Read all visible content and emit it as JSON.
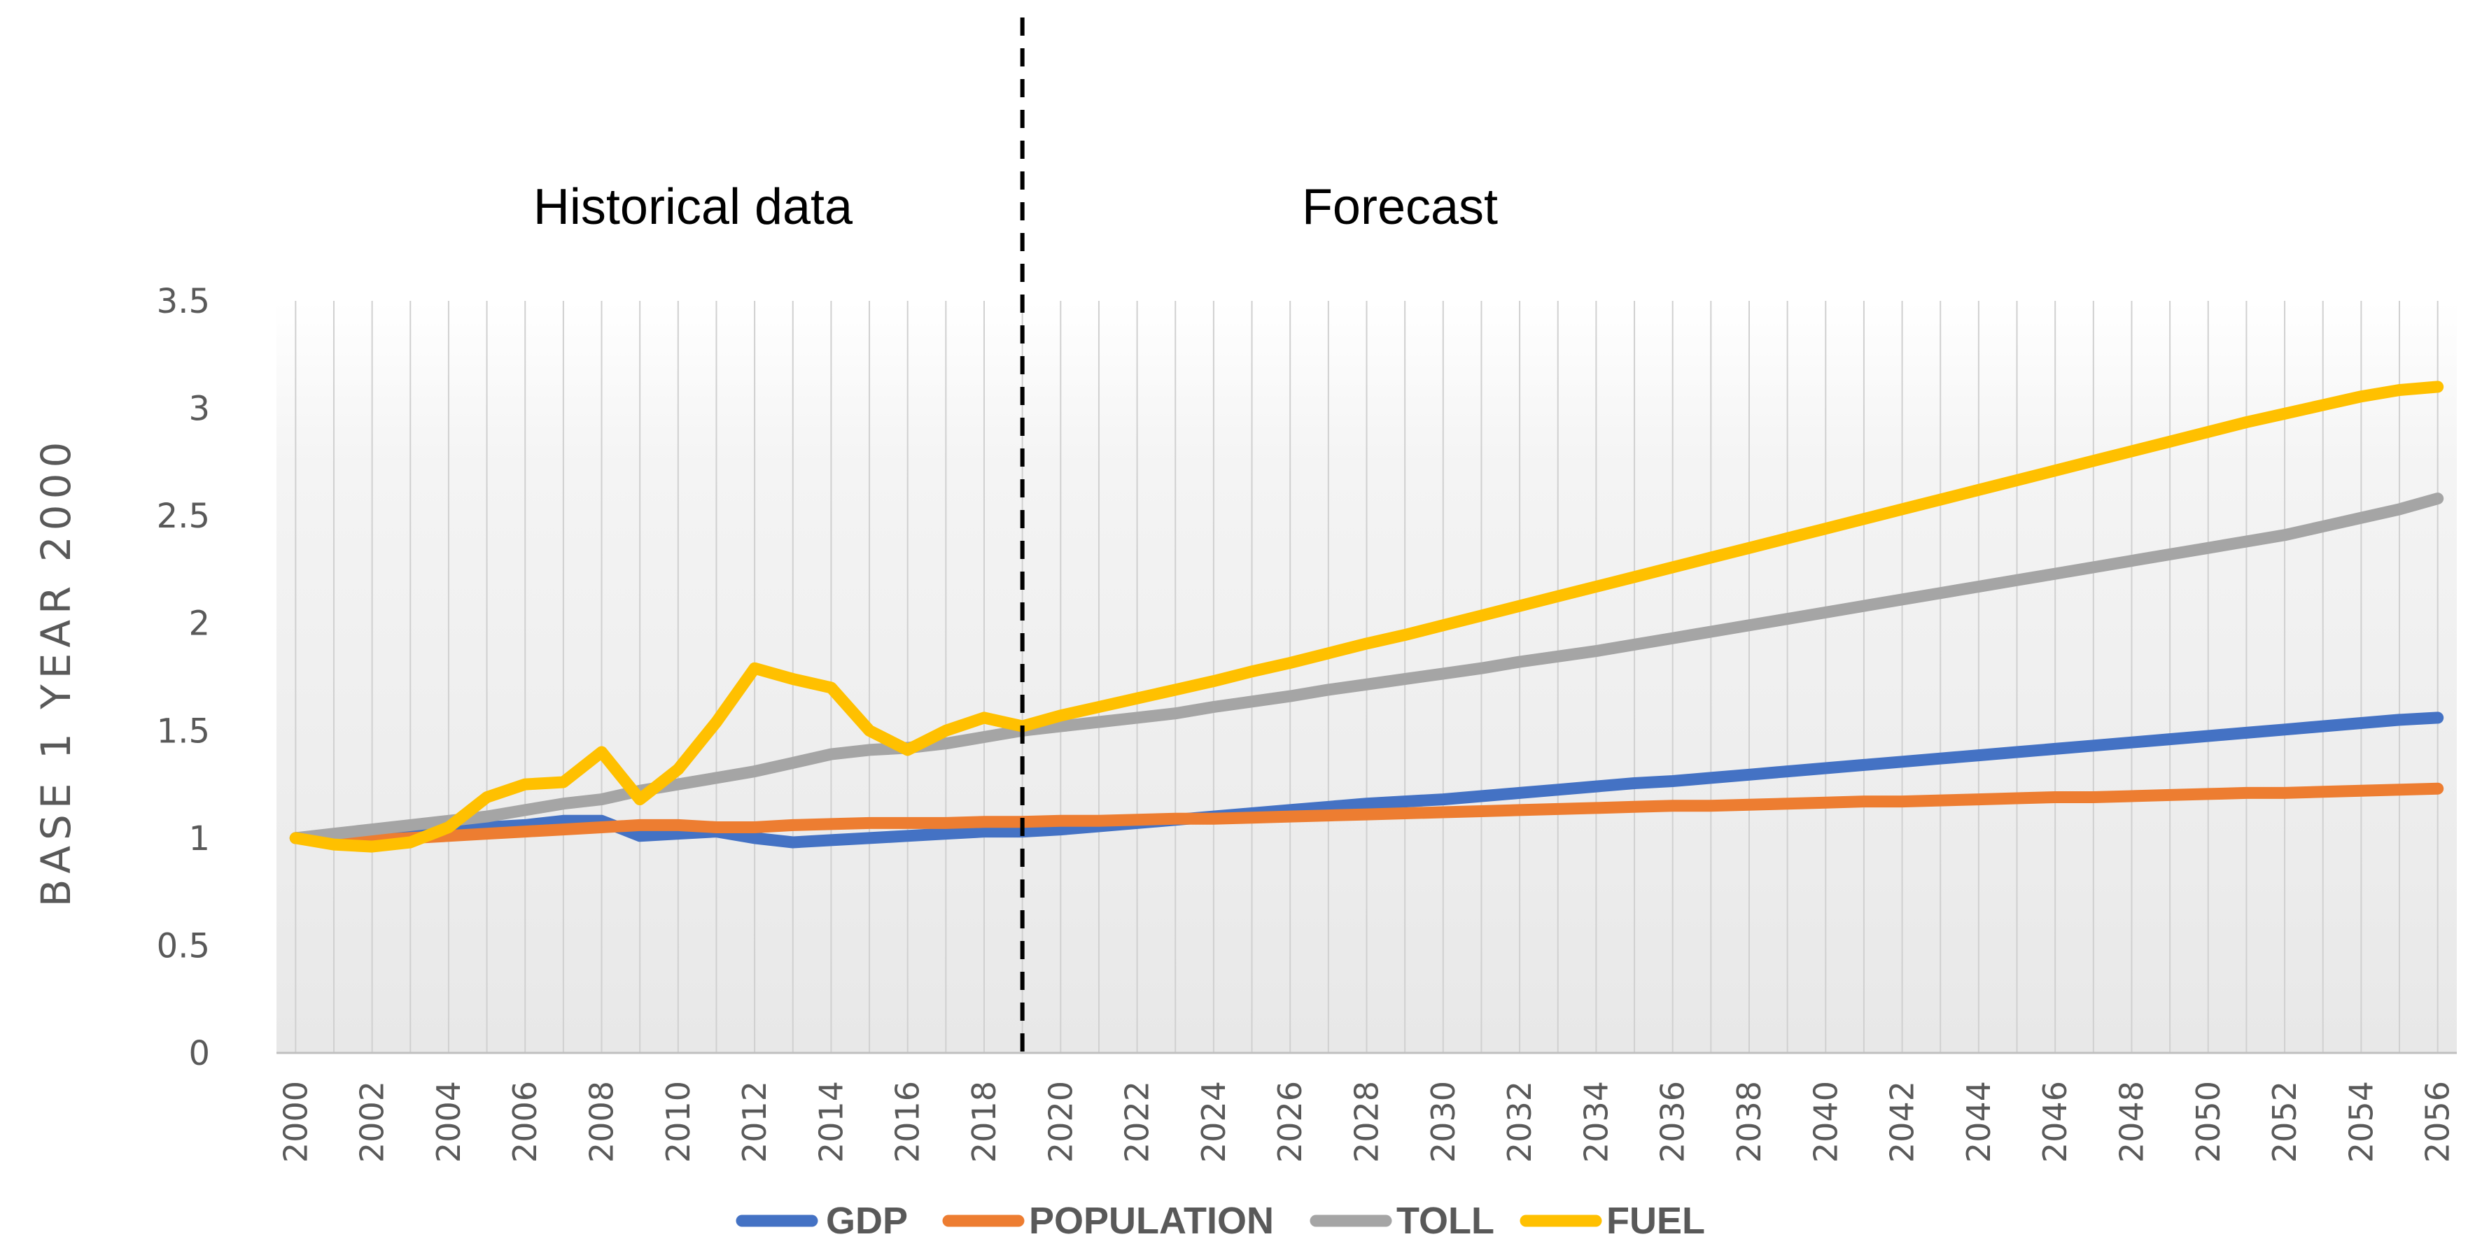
{
  "chart_data": {
    "type": "line",
    "ylabel": "BASE 1  YEAR  2000",
    "ylim": [
      0,
      3.5
    ],
    "yticks": [
      0,
      0.5,
      1,
      1.5,
      2,
      2.5,
      3,
      3.5
    ],
    "ytick_labels": [
      "0",
      "0.5",
      "1",
      "1.5",
      "2",
      "2.5",
      "3",
      "3.5"
    ],
    "x_start": 2000,
    "x_end": 2056,
    "xtick_labels": [
      "2000",
      "2002",
      "2004",
      "2006",
      "2008",
      "2010",
      "2012",
      "2014",
      "2016",
      "2018",
      "2020",
      "2022",
      "2024",
      "2026",
      "2028",
      "2030",
      "2032",
      "2034",
      "2036",
      "2038",
      "2040",
      "2042",
      "2044",
      "2046",
      "2048",
      "2050",
      "2052",
      "2054",
      "2056"
    ],
    "grid": {
      "vertical": true,
      "horizontal": false
    },
    "divider_year": 2019,
    "annotations": {
      "historical": "Historical data",
      "forecast": "Forecast"
    },
    "legend_position": "bottom",
    "series": [
      {
        "name": "GDP",
        "color": "#4472C4",
        "values": [
          1.0,
          1.01,
          1.02,
          1.03,
          1.04,
          1.05,
          1.06,
          1.08,
          1.08,
          1.01,
          1.02,
          1.03,
          1.0,
          0.98,
          0.99,
          1.0,
          1.01,
          1.02,
          1.03,
          1.03,
          1.04,
          1.055,
          1.07,
          1.085,
          1.1,
          1.115,
          1.13,
          1.145,
          1.16,
          1.17,
          1.18,
          1.195,
          1.21,
          1.225,
          1.24,
          1.255,
          1.265,
          1.28,
          1.295,
          1.31,
          1.325,
          1.34,
          1.355,
          1.37,
          1.385,
          1.4,
          1.415,
          1.43,
          1.445,
          1.46,
          1.475,
          1.49,
          1.505,
          1.52,
          1.535,
          1.55,
          1.56
        ]
      },
      {
        "name": "POPULATION",
        "color": "#ED7D31",
        "values": [
          1.0,
          0.99,
          0.99,
          1.0,
          1.01,
          1.02,
          1.03,
          1.04,
          1.05,
          1.06,
          1.06,
          1.05,
          1.05,
          1.06,
          1.065,
          1.07,
          1.07,
          1.07,
          1.075,
          1.075,
          1.08,
          1.08,
          1.085,
          1.09,
          1.09,
          1.095,
          1.1,
          1.105,
          1.11,
          1.115,
          1.12,
          1.125,
          1.13,
          1.135,
          1.14,
          1.145,
          1.15,
          1.15,
          1.155,
          1.16,
          1.165,
          1.17,
          1.17,
          1.175,
          1.18,
          1.185,
          1.19,
          1.19,
          1.195,
          1.2,
          1.205,
          1.21,
          1.21,
          1.215,
          1.22,
          1.225,
          1.23
        ]
      },
      {
        "name": "TOLL",
        "color": "#A5A5A5",
        "values": [
          1.0,
          1.02,
          1.04,
          1.06,
          1.08,
          1.1,
          1.13,
          1.16,
          1.18,
          1.22,
          1.25,
          1.28,
          1.31,
          1.35,
          1.39,
          1.41,
          1.42,
          1.44,
          1.47,
          1.5,
          1.52,
          1.54,
          1.56,
          1.58,
          1.61,
          1.635,
          1.66,
          1.69,
          1.715,
          1.74,
          1.765,
          1.79,
          1.82,
          1.845,
          1.87,
          1.9,
          1.93,
          1.96,
          1.99,
          2.02,
          2.05,
          2.08,
          2.11,
          2.14,
          2.17,
          2.2,
          2.23,
          2.26,
          2.29,
          2.32,
          2.35,
          2.38,
          2.41,
          2.45,
          2.49,
          2.53,
          2.58
        ]
      },
      {
        "name": "FUEL",
        "color": "#FFC000",
        "values": [
          1.0,
          0.97,
          0.96,
          0.98,
          1.05,
          1.19,
          1.25,
          1.26,
          1.4,
          1.18,
          1.32,
          1.54,
          1.79,
          1.74,
          1.7,
          1.5,
          1.41,
          1.5,
          1.56,
          1.52,
          1.57,
          1.61,
          1.65,
          1.69,
          1.73,
          1.775,
          1.815,
          1.86,
          1.905,
          1.945,
          1.99,
          2.035,
          2.08,
          2.125,
          2.17,
          2.215,
          2.26,
          2.305,
          2.35,
          2.395,
          2.44,
          2.485,
          2.53,
          2.575,
          2.62,
          2.665,
          2.71,
          2.755,
          2.8,
          2.845,
          2.89,
          2.935,
          2.975,
          3.015,
          3.055,
          3.085,
          3.1
        ]
      }
    ]
  }
}
